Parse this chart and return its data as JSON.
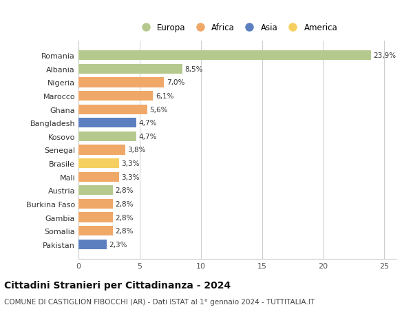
{
  "countries": [
    "Romania",
    "Albania",
    "Nigeria",
    "Marocco",
    "Ghana",
    "Bangladesh",
    "Kosovo",
    "Senegal",
    "Brasile",
    "Mali",
    "Austria",
    "Burkina Faso",
    "Gambia",
    "Somalia",
    "Pakistan"
  ],
  "values": [
    23.9,
    8.5,
    7.0,
    6.1,
    5.6,
    4.7,
    4.7,
    3.8,
    3.3,
    3.3,
    2.8,
    2.8,
    2.8,
    2.8,
    2.3
  ],
  "labels": [
    "23,9%",
    "8,5%",
    "7,0%",
    "6,1%",
    "5,6%",
    "4,7%",
    "4,7%",
    "3,8%",
    "3,3%",
    "3,3%",
    "2,8%",
    "2,8%",
    "2,8%",
    "2,8%",
    "2,3%"
  ],
  "continents": [
    "Europa",
    "Europa",
    "Africa",
    "Africa",
    "Africa",
    "Asia",
    "Europa",
    "Africa",
    "America",
    "Africa",
    "Europa",
    "Africa",
    "Africa",
    "Africa",
    "Asia"
  ],
  "continent_colors": {
    "Europa": "#b5c98e",
    "Africa": "#f0a868",
    "Asia": "#5b7fbf",
    "America": "#f5d060"
  },
  "legend_order": [
    "Europa",
    "Africa",
    "Asia",
    "America"
  ],
  "title": "Cittadini Stranieri per Cittadinanza - 2024",
  "subtitle": "COMUNE DI CASTIGLION FIBOCCHI (AR) - Dati ISTAT al 1° gennaio 2024 - TUTTITALIA.IT",
  "xlim": [
    0,
    26
  ],
  "xticks": [
    0,
    5,
    10,
    15,
    20,
    25
  ],
  "background_color": "#ffffff",
  "grid_color": "#cccccc",
  "bar_height": 0.72,
  "label_fontsize": 7.5,
  "ytick_fontsize": 8.0,
  "xtick_fontsize": 8.0,
  "title_fontsize": 10,
  "subtitle_fontsize": 7.5
}
